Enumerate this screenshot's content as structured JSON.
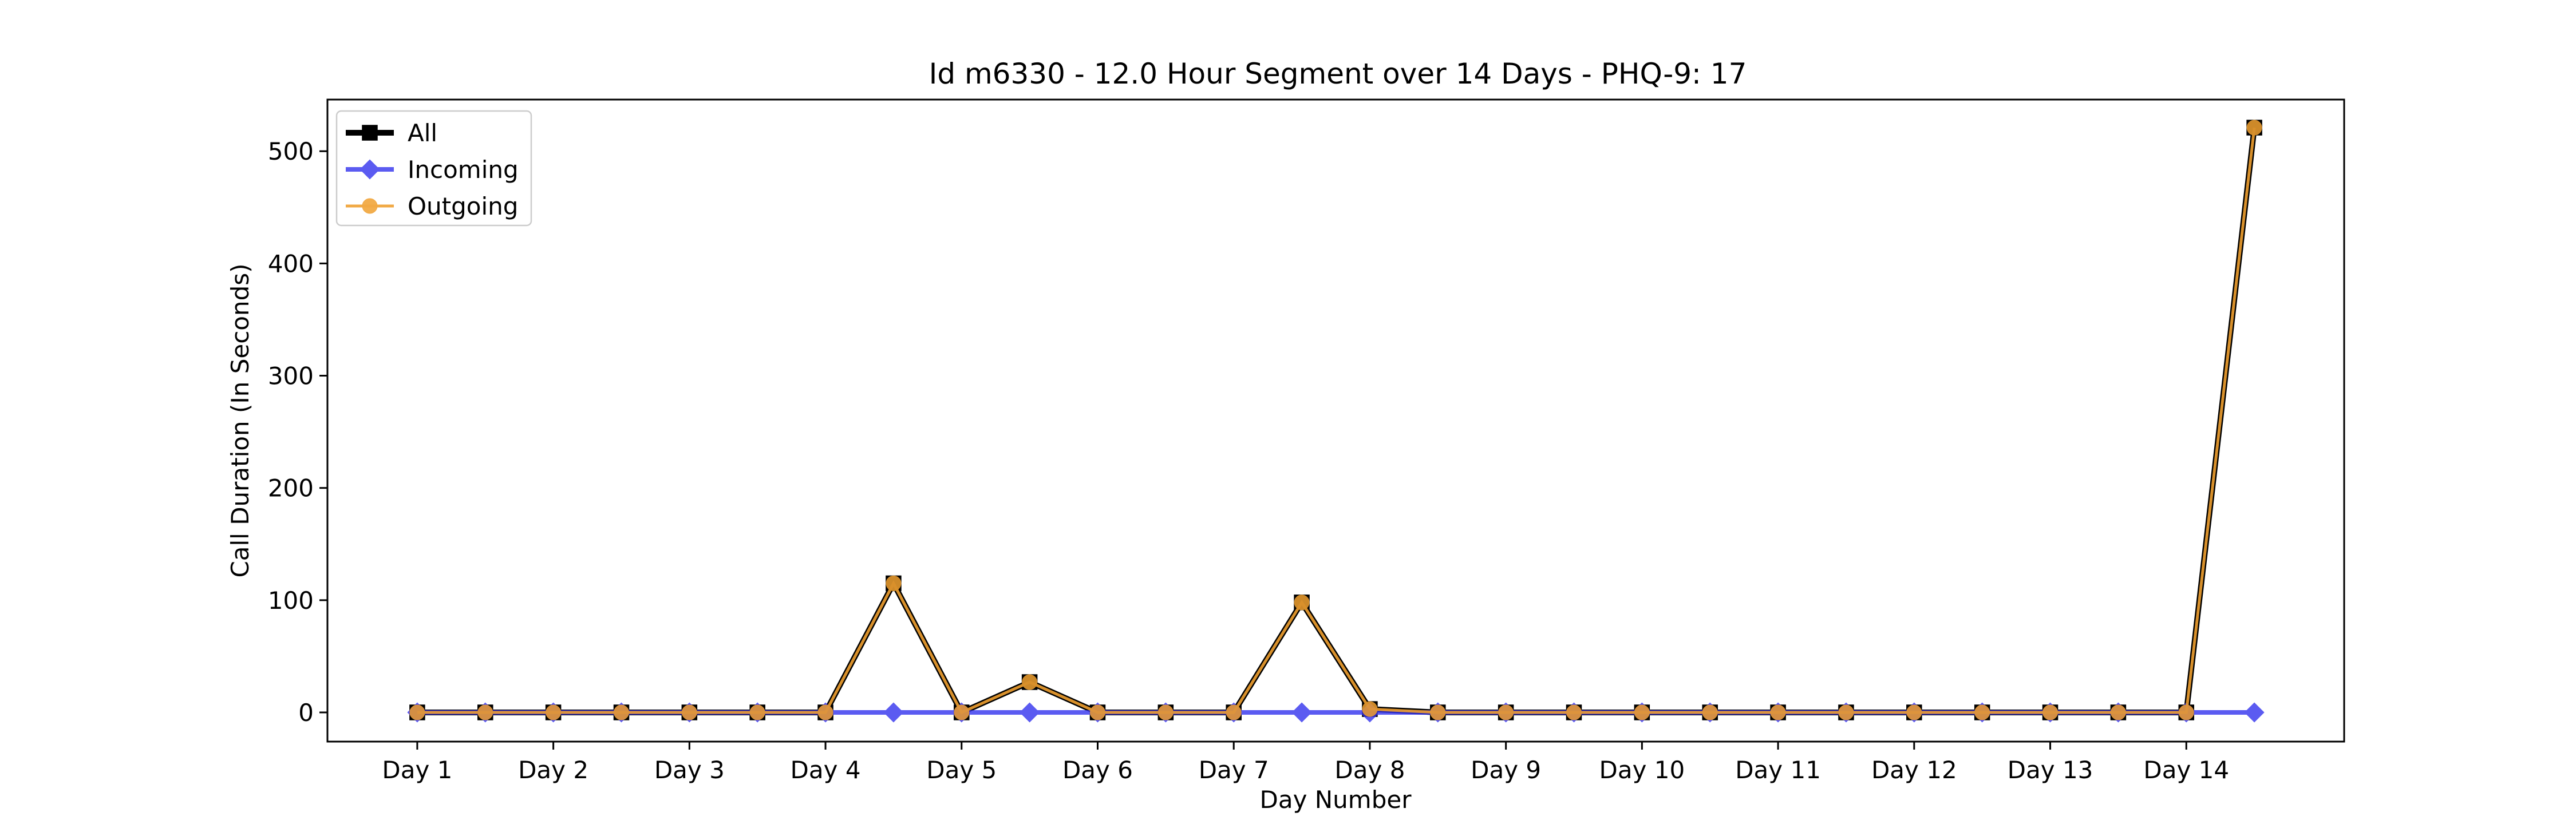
{
  "chart_data": {
    "type": "line",
    "title": "Id m6330 - 12.0 Hour Segment over 14 Days - PHQ-9: 17",
    "xlabel": "Day Number",
    "ylabel": "Call Duration (In Seconds)",
    "x": [
      1,
      1.5,
      2,
      2.5,
      3,
      3.5,
      4,
      4.5,
      5,
      5.5,
      6,
      6.5,
      7,
      7.5,
      8,
      8.5,
      9,
      9.5,
      10,
      10.5,
      11,
      11.5,
      12,
      12.5,
      13,
      13.5,
      14,
      14.5
    ],
    "xticks": [
      1,
      2,
      3,
      4,
      5,
      6,
      7,
      8,
      9,
      10,
      11,
      12,
      13,
      14
    ],
    "xtick_labels": [
      "Day 1",
      "Day 2",
      "Day 3",
      "Day 4",
      "Day 5",
      "Day 6",
      "Day 7",
      "Day 8",
      "Day 9",
      "Day 10",
      "Day 11",
      "Day 12",
      "Day 13",
      "Day 14"
    ],
    "yticks": [
      0,
      100,
      200,
      300,
      400,
      500
    ],
    "ytick_labels": [
      "0",
      "100",
      "200",
      "300",
      "400",
      "500"
    ],
    "xlim": [
      0.34,
      15.16
    ],
    "ylim": [
      -26,
      546
    ],
    "grid": false,
    "legend_position": "top-left",
    "series": [
      {
        "name": "All",
        "color": "#000000",
        "marker": "square",
        "values": [
          0,
          0,
          0,
          0,
          0,
          0,
          0,
          115,
          0,
          27,
          0,
          0,
          0,
          98,
          3,
          0,
          0,
          0,
          0,
          0,
          0,
          0,
          0,
          0,
          0,
          0,
          0,
          521
        ]
      },
      {
        "name": "Incoming",
        "color": "#3333ee",
        "marker": "diamond",
        "values": [
          0,
          0,
          0,
          0,
          0,
          0,
          0,
          0,
          0,
          0,
          0,
          0,
          0,
          0,
          0,
          0,
          0,
          0,
          0,
          0,
          0,
          0,
          0,
          0,
          0,
          0,
          0,
          0
        ]
      },
      {
        "name": "Outgoing",
        "color": "#f0a030",
        "marker": "circle",
        "values": [
          0,
          0,
          0,
          0,
          0,
          0,
          0,
          115,
          0,
          27,
          0,
          0,
          0,
          98,
          3,
          0,
          0,
          0,
          0,
          0,
          0,
          0,
          0,
          0,
          0,
          0,
          0,
          521
        ]
      }
    ]
  }
}
